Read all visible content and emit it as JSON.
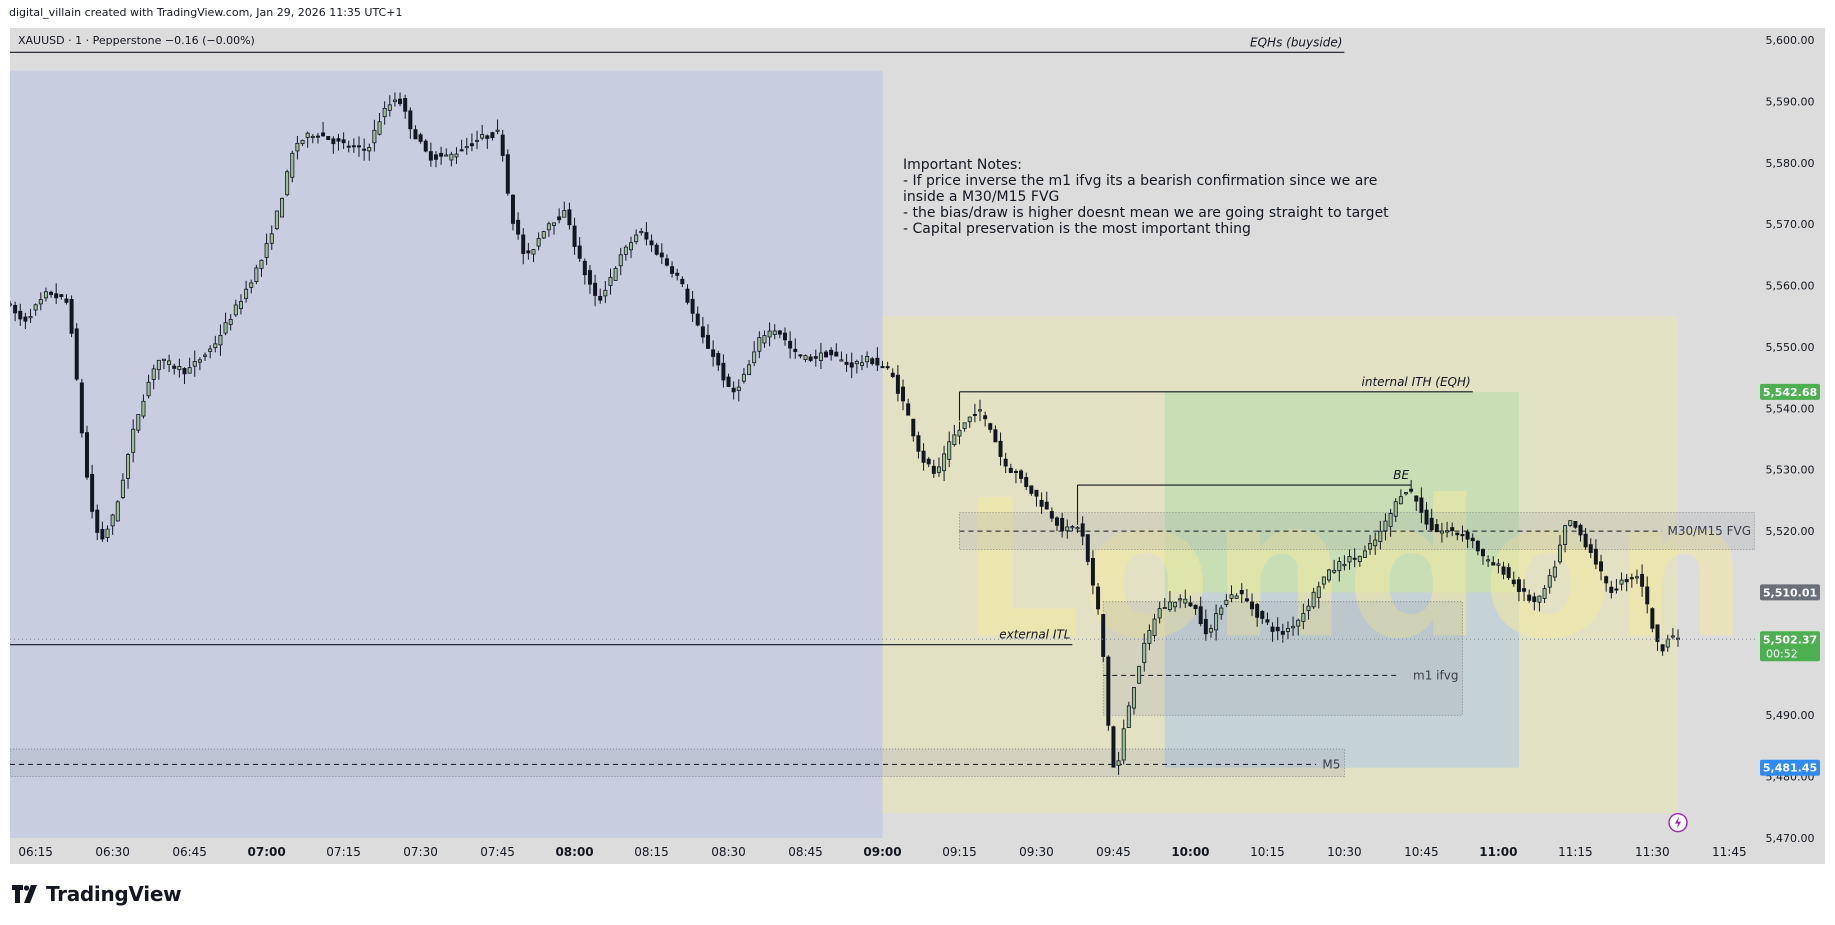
{
  "header": {
    "credit": "digital_villain created with TradingView.com, Jan 29, 2026 11:35 UTC+1"
  },
  "symbol_line": "XAUUSD · 1 · Pepperstone  −0.16 (−0.00%)",
  "brand": "TradingView",
  "colors": {
    "frame": "#dcdcdc",
    "asia_session": "#c8cde0",
    "london_session": "#e3e1c4",
    "trade_zone": "#c8deb5",
    "trade_zone_lower": "#c5d3d6",
    "candle_body": "#131722",
    "candle_up_fill": "#dcdcdc",
    "price_green": "#4caf50",
    "price_grey": "#6b6f7a",
    "price_blue": "#2f8bf0"
  },
  "notes": {
    "title": "Important Notes:",
    "lines": [
      "- If price inverse the m1 ifvg its a bearish confirmation since we are",
      "inside a M30/M15 FVG",
      "- the bias/draw is higher doesnt mean we are going straight to target",
      "- Capital preservation is the most important thing"
    ]
  },
  "watermark": "London",
  "price_tags": {
    "ith": "5,542.68",
    "mid": "5,510.01",
    "current": "5,502.37",
    "countdown": "00:52",
    "target": "5,481.45"
  },
  "chart_data": {
    "type": "candlestick",
    "symbol": "XAUUSD",
    "timeframe": "1",
    "broker": "Pepperstone",
    "change": "−0.16 (−0.00%)",
    "y_axis": {
      "range": [
        5470,
        5600
      ],
      "ticks": [
        5470,
        5480,
        5490,
        5500,
        5510,
        5520,
        5530,
        5540,
        5550,
        5560,
        5570,
        5580,
        5590,
        5600
      ],
      "tick_labels": [
        "5,470.00",
        "5,480.00",
        "5,490.00",
        "5,500.00",
        "5,510.00",
        "5,520.00",
        "5,530.00",
        "5,540.00",
        "5,550.00",
        "5,560.00",
        "5,570.00",
        "5,580.00",
        "5,590.00",
        "5,600.00"
      ]
    },
    "x_axis": {
      "range": [
        "06:10",
        "11:50"
      ],
      "ticks": [
        {
          "t": "06:15",
          "label": "06:15",
          "bold": false
        },
        {
          "t": "06:30",
          "label": "06:30",
          "bold": false
        },
        {
          "t": "06:45",
          "label": "06:45",
          "bold": false
        },
        {
          "t": "07:00",
          "label": "07:00",
          "bold": true
        },
        {
          "t": "07:15",
          "label": "07:15",
          "bold": false
        },
        {
          "t": "07:30",
          "label": "07:30",
          "bold": false
        },
        {
          "t": "07:45",
          "label": "07:45",
          "bold": false
        },
        {
          "t": "08:00",
          "label": "08:00",
          "bold": true
        },
        {
          "t": "08:15",
          "label": "08:15",
          "bold": false
        },
        {
          "t": "08:30",
          "label": "08:30",
          "bold": false
        },
        {
          "t": "08:45",
          "label": "08:45",
          "bold": false
        },
        {
          "t": "09:00",
          "label": "09:00",
          "bold": true
        },
        {
          "t": "09:15",
          "label": "09:15",
          "bold": false
        },
        {
          "t": "09:30",
          "label": "09:30",
          "bold": false
        },
        {
          "t": "09:45",
          "label": "09:45",
          "bold": false
        },
        {
          "t": "10:00",
          "label": "10:00",
          "bold": true
        },
        {
          "t": "10:15",
          "label": "10:15",
          "bold": false
        },
        {
          "t": "10:30",
          "label": "10:30",
          "bold": false
        },
        {
          "t": "10:45",
          "label": "10:45",
          "bold": false
        },
        {
          "t": "11:00",
          "label": "11:00",
          "bold": true
        },
        {
          "t": "11:15",
          "label": "11:15",
          "bold": false
        },
        {
          "t": "11:30",
          "label": "11:30",
          "bold": false
        },
        {
          "t": "11:45",
          "label": "11:45",
          "bold": false
        }
      ]
    },
    "price_path": [
      [
        "06:10",
        5557
      ],
      [
        "06:13",
        5554
      ],
      [
        "06:18",
        5559
      ],
      [
        "06:22",
        5557
      ],
      [
        "06:24",
        5540
      ],
      [
        "06:26",
        5525
      ],
      [
        "06:28",
        5518
      ],
      [
        "06:31",
        5523
      ],
      [
        "06:35",
        5538
      ],
      [
        "06:39",
        5548
      ],
      [
        "06:45",
        5546
      ],
      [
        "06:50",
        5550
      ],
      [
        "06:55",
        5557
      ],
      [
        "07:00",
        5565
      ],
      [
        "07:03",
        5573
      ],
      [
        "07:06",
        5583
      ],
      [
        "07:10",
        5585
      ],
      [
        "07:15",
        5583
      ],
      [
        "07:20",
        5582
      ],
      [
        "07:23",
        5588
      ],
      [
        "07:26",
        5591
      ],
      [
        "07:29",
        5585
      ],
      [
        "07:32",
        5581
      ],
      [
        "07:36",
        5581
      ],
      [
        "07:42",
        5584
      ],
      [
        "07:46",
        5585
      ],
      [
        "07:48",
        5572
      ],
      [
        "07:51",
        5564
      ],
      [
        "07:55",
        5570
      ],
      [
        "07:59",
        5572
      ],
      [
        "08:01",
        5565
      ],
      [
        "08:05",
        5557
      ],
      [
        "08:09",
        5564
      ],
      [
        "08:13",
        5569
      ],
      [
        "08:17",
        5565
      ],
      [
        "08:21",
        5561
      ],
      [
        "08:25",
        5552
      ],
      [
        "08:28",
        5548
      ],
      [
        "08:31",
        5542
      ],
      [
        "08:34",
        5546
      ],
      [
        "08:37",
        5552
      ],
      [
        "08:40",
        5553
      ],
      [
        "08:43",
        5549
      ],
      [
        "08:46",
        5548
      ],
      [
        "08:50",
        5549
      ],
      [
        "08:54",
        5547
      ],
      [
        "08:58",
        5548
      ],
      [
        "09:02",
        5546
      ],
      [
        "09:05",
        5540
      ],
      [
        "09:08",
        5532
      ],
      [
        "09:11",
        5529
      ],
      [
        "09:14",
        5535
      ],
      [
        "09:17",
        5538
      ],
      [
        "09:19",
        5540
      ],
      [
        "09:22",
        5536
      ],
      [
        "09:24",
        5531
      ],
      [
        "09:27",
        5529
      ],
      [
        "09:30",
        5526
      ],
      [
        "09:33",
        5523
      ],
      [
        "09:36",
        5520
      ],
      [
        "09:39",
        5521
      ],
      [
        "09:41",
        5513
      ],
      [
        "09:43",
        5505
      ],
      [
        "09:45",
        5483
      ],
      [
        "09:46",
        5480
      ],
      [
        "09:48",
        5490
      ],
      [
        "09:51",
        5500
      ],
      [
        "09:54",
        5507
      ],
      [
        "09:58",
        5509
      ],
      [
        "10:01",
        5508
      ],
      [
        "10:04",
        5503
      ],
      [
        "10:07",
        5509
      ],
      [
        "10:10",
        5510
      ],
      [
        "10:14",
        5506
      ],
      [
        "10:18",
        5503
      ],
      [
        "10:22",
        5506
      ],
      [
        "10:26",
        5512
      ],
      [
        "10:30",
        5515
      ],
      [
        "10:34",
        5516
      ],
      [
        "10:37",
        5519
      ],
      [
        "10:39",
        5522
      ],
      [
        "10:42",
        5527
      ],
      [
        "10:44",
        5526
      ],
      [
        "10:46",
        5522
      ],
      [
        "10:48",
        5520
      ],
      [
        "10:51",
        5520
      ],
      [
        "10:55",
        5519
      ],
      [
        "10:58",
        5515
      ],
      [
        "11:01",
        5514
      ],
      [
        "11:05",
        5510
      ],
      [
        "11:08",
        5508
      ],
      [
        "11:11",
        5513
      ],
      [
        "11:14",
        5522
      ],
      [
        "11:16",
        5520
      ],
      [
        "11:19",
        5516
      ],
      [
        "11:22",
        5510
      ],
      [
        "11:25",
        5512
      ],
      [
        "11:28",
        5513
      ],
      [
        "11:30",
        5506
      ],
      [
        "11:32",
        5500
      ],
      [
        "11:34",
        5504
      ],
      [
        "11:35",
        5502
      ]
    ],
    "sessions": [
      {
        "from": "06:10",
        "to": "09:00",
        "low": 5470,
        "high": 5595
      },
      {
        "from": "09:00",
        "to": "11:35",
        "low": 5474,
        "high": 5555
      }
    ],
    "trade_zone": {
      "from": "09:55",
      "to": "11:04",
      "low": 5481.45,
      "high": 5542.68,
      "entry": 5510.01
    },
    "levels": [
      {
        "label": "EQHs (buyside)",
        "price": 5598,
        "from": "06:10",
        "to": "10:30"
      },
      {
        "label": "internal ITH (EQH)",
        "price": 5542.68,
        "from": "09:15",
        "to": "10:55"
      },
      {
        "label": "BE",
        "price": 5527.5,
        "from": "09:38",
        "to": "10:43"
      },
      {
        "label": "external ITL",
        "price": 5501.5,
        "from": "06:10",
        "to": "09:37"
      }
    ],
    "zones": [
      {
        "label": "M30/M15 FVG",
        "low": 5517,
        "high": 5523,
        "mid": 5520,
        "from": "09:15",
        "to": "11:50"
      },
      {
        "label": "m1 ifvg",
        "low": 5490,
        "high": 5508.5,
        "mid": 5496.5,
        "from": "09:43",
        "to": "10:53"
      },
      {
        "label": "M5",
        "low": 5480,
        "high": 5484.5,
        "mid": 5482,
        "from": "06:10",
        "to": "10:30"
      }
    ],
    "grid": false,
    "legend": "none"
  }
}
